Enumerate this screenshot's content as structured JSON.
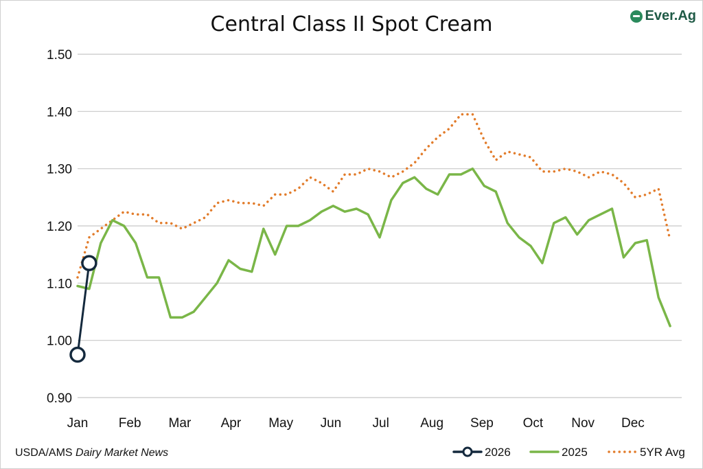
{
  "title": "Central Class II Spot Cream",
  "logo": {
    "text": "Ever.Ag",
    "icon": "ever-ag-logo-icon",
    "color": "#1f5a46"
  },
  "source": {
    "prefix": "USDA/AMS ",
    "italic": "Dairy Market News"
  },
  "chart_data": {
    "type": "line",
    "title": "Central Class II Spot Cream",
    "xlabel": "",
    "ylabel": "",
    "ylim": [
      0.9,
      1.5
    ],
    "yticks": [
      "1.50",
      "1.40",
      "1.30",
      "1.20",
      "1.10",
      "1.00",
      "0.90"
    ],
    "ytick_values": [
      1.5,
      1.4,
      1.3,
      1.2,
      1.1,
      1.0,
      0.9
    ],
    "x_domain": [
      1,
      53
    ],
    "x_unit": "week of year",
    "month_labels": [
      "Jan",
      "Feb",
      "Mar",
      "Apr",
      "May",
      "Jun",
      "Jul",
      "Aug",
      "Sep",
      "Oct",
      "Nov",
      "Dec"
    ],
    "month_positions": [
      1,
      5.5,
      9.8,
      14.2,
      18.5,
      22.8,
      27.1,
      31.5,
      35.8,
      40.2,
      44.5,
      48.8
    ],
    "grid": "horizontal",
    "legend_position": "bottom-right",
    "series": [
      {
        "name": "2026",
        "style": "line-circle-markers",
        "color": "#14293d",
        "x": [
          1,
          2
        ],
        "values": [
          0.975,
          1.135
        ]
      },
      {
        "name": "2025",
        "style": "solid",
        "color": "#7ab648",
        "x": [
          1,
          2,
          3,
          4,
          5,
          6,
          7,
          8,
          9,
          10,
          11,
          12,
          13,
          14,
          15,
          16,
          17,
          18,
          19,
          20,
          21,
          22,
          23,
          24,
          25,
          26,
          27,
          28,
          29,
          30,
          31,
          32,
          33,
          34,
          35,
          36,
          37,
          38,
          39,
          40,
          41,
          42,
          43,
          44,
          45,
          46,
          47,
          48,
          49,
          50,
          51,
          52
        ],
        "values": [
          1.095,
          1.09,
          1.17,
          1.21,
          1.2,
          1.17,
          1.11,
          1.11,
          1.04,
          1.04,
          1.05,
          1.075,
          1.1,
          1.14,
          1.125,
          1.12,
          1.195,
          1.15,
          1.2,
          1.2,
          1.21,
          1.225,
          1.235,
          1.225,
          1.23,
          1.22,
          1.18,
          1.245,
          1.275,
          1.285,
          1.265,
          1.255,
          1.29,
          1.29,
          1.3,
          1.27,
          1.26,
          1.205,
          1.18,
          1.165,
          1.135,
          1.205,
          1.215,
          1.185,
          1.21,
          1.22,
          1.23,
          1.145,
          1.17,
          1.175,
          1.075,
          1.025
        ]
      },
      {
        "name": "5YR Avg",
        "style": "dotted",
        "color": "#e27c2b",
        "x": [
          1,
          2,
          3,
          4,
          5,
          6,
          7,
          8,
          9,
          10,
          11,
          12,
          13,
          14,
          15,
          16,
          17,
          18,
          19,
          20,
          21,
          22,
          23,
          24,
          25,
          26,
          27,
          28,
          29,
          30,
          31,
          32,
          33,
          34,
          35,
          36,
          37,
          38,
          39,
          40,
          41,
          42,
          43,
          44,
          45,
          46,
          47,
          48,
          49,
          50,
          51,
          52
        ],
        "values": [
          1.11,
          1.18,
          1.195,
          1.21,
          1.225,
          1.22,
          1.22,
          1.205,
          1.205,
          1.195,
          1.205,
          1.215,
          1.24,
          1.245,
          1.24,
          1.24,
          1.235,
          1.255,
          1.255,
          1.265,
          1.285,
          1.275,
          1.26,
          1.29,
          1.29,
          1.3,
          1.295,
          1.285,
          1.295,
          1.31,
          1.335,
          1.355,
          1.37,
          1.395,
          1.395,
          1.35,
          1.315,
          1.33,
          1.325,
          1.32,
          1.295,
          1.295,
          1.3,
          1.295,
          1.285,
          1.295,
          1.29,
          1.275,
          1.25,
          1.255,
          1.265,
          1.175
        ]
      }
    ]
  }
}
